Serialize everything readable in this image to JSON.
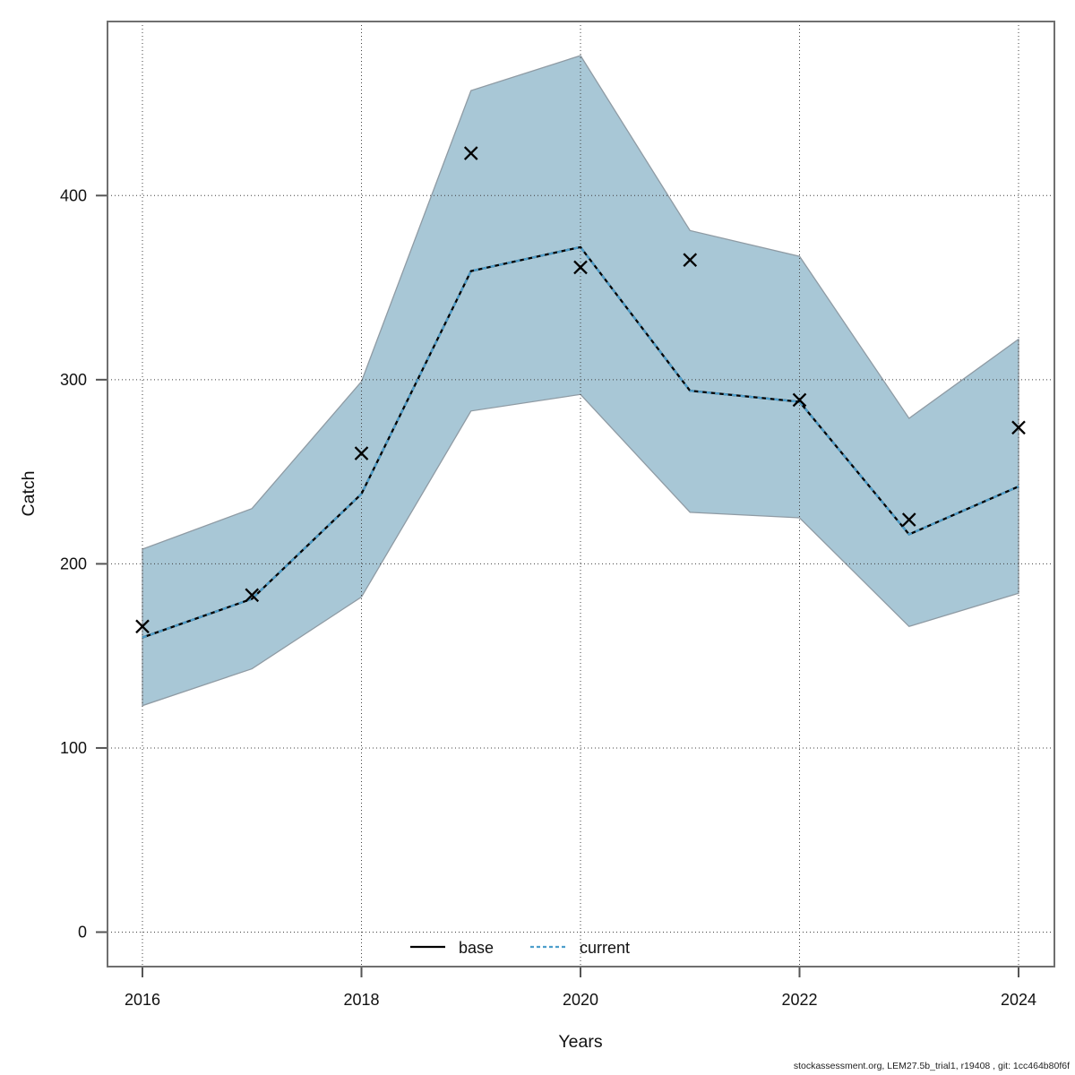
{
  "chart_data": {
    "type": "line",
    "title": "",
    "xlabel": "Years",
    "ylabel": "Catch",
    "x": [
      2016,
      2017,
      2018,
      2019,
      2020,
      2021,
      2022,
      2023,
      2024
    ],
    "series": [
      {
        "name": "base",
        "style": "solid",
        "color": "#000000",
        "values": [
          160,
          181,
          238,
          359,
          372,
          294,
          288,
          216,
          242
        ]
      },
      {
        "name": "current",
        "style": "dashed",
        "color": "#4d9ecb",
        "values": [
          160,
          181,
          238,
          359,
          372,
          294,
          288,
          216,
          242
        ]
      },
      {
        "name": "observed-catch-markers",
        "style": "x-marker",
        "color": "#000000",
        "values": [
          166,
          183,
          260,
          423,
          361,
          365,
          289,
          224,
          274
        ]
      }
    ],
    "band": {
      "name": "confidence-interval",
      "upper": [
        208,
        230,
        299,
        457,
        476,
        381,
        367,
        279,
        322
      ],
      "lower": [
        123,
        143,
        182,
        283,
        292,
        228,
        225,
        166,
        184
      ],
      "fill": "#a8c7d6",
      "border": "#8f9ba4"
    },
    "xticks": [
      "2016",
      "2018",
      "2020",
      "2022",
      "2024"
    ],
    "xtick_values": [
      2016,
      2018,
      2020,
      2022,
      2024
    ],
    "yticks": [
      "0",
      "100",
      "200",
      "300",
      "400"
    ],
    "ytick_values": [
      0,
      100,
      200,
      300,
      400
    ],
    "xlim": [
      2015.35,
      2024.65
    ],
    "ylim": [
      -18,
      494
    ],
    "grid": true,
    "legend_position": "bottom-center"
  },
  "axes": {
    "x_label": "Years",
    "y_label": "Catch"
  },
  "legend": {
    "base_label": "base",
    "current_label": "current"
  },
  "footer": {
    "credit": "stockassessment.org, LEM27.5b_trial1, r19408 , git: 1cc464b80f6f"
  }
}
